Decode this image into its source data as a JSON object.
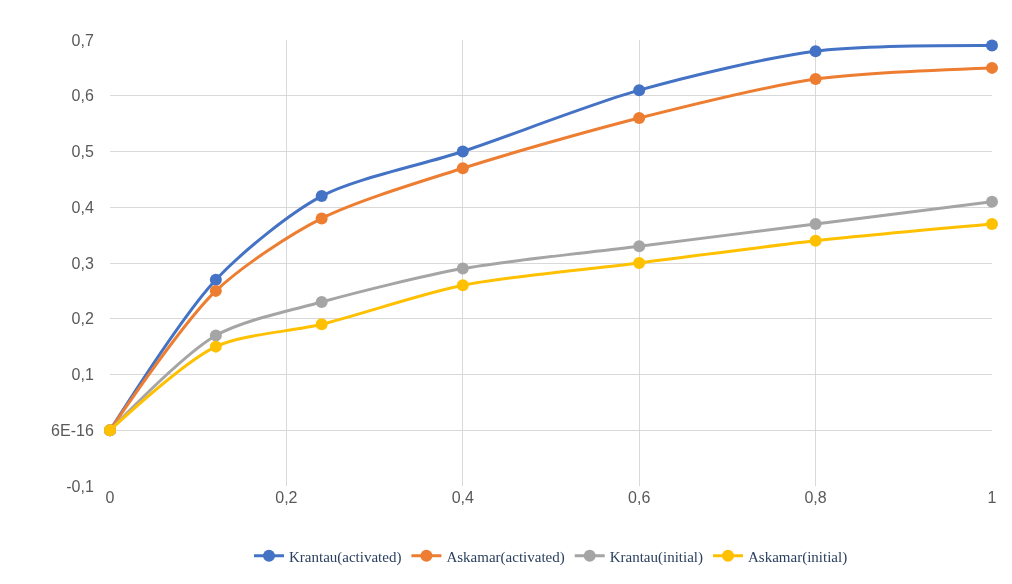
{
  "chart_data": {
    "type": "line",
    "x": [
      0,
      0.12,
      0.24,
      0.4,
      0.6,
      0.8,
      1
    ],
    "series": [
      {
        "name": "Krantau(activated)",
        "color": "#4472c4",
        "values": [
          0,
          0.27,
          0.42,
          0.5,
          0.61,
          0.68,
          0.69
        ]
      },
      {
        "name": "Askamar(activated)",
        "color": "#ed7d31",
        "values": [
          0,
          0.25,
          0.38,
          0.47,
          0.56,
          0.63,
          0.65
        ]
      },
      {
        "name": "Krantau(initial)",
        "color": "#a5a5a5",
        "values": [
          0,
          0.17,
          0.23,
          0.29,
          0.33,
          0.37,
          0.41
        ]
      },
      {
        "name": "Askamar(initial)",
        "color": "#ffc000",
        "values": [
          0,
          0.15,
          0.19,
          0.26,
          0.3,
          0.34,
          0.37
        ]
      }
    ],
    "xlim": [
      0,
      1
    ],
    "xticks": [
      0,
      {
        "value": 0.2,
        "label": "0,2"
      },
      {
        "value": 0.4,
        "label": "0,4"
      },
      {
        "value": 0.6,
        "label": "0,6"
      },
      {
        "value": 0.8,
        "label": "0,8"
      },
      1
    ],
    "ylim": [
      -0.1,
      0.7
    ],
    "yticks": [
      {
        "value": -0.1,
        "label": "-0,1"
      },
      {
        "value": 0,
        "label": "6E-16"
      },
      {
        "value": 0.1,
        "label": "0,1"
      },
      {
        "value": 0.2,
        "label": "0,2"
      },
      {
        "value": 0.3,
        "label": "0,3"
      },
      {
        "value": 0.4,
        "label": "0,4"
      },
      {
        "value": 0.5,
        "label": "0,5"
      },
      {
        "value": 0.6,
        "label": "0,6"
      },
      {
        "value": 0.7,
        "label": "0,7"
      }
    ],
    "grid": true,
    "legend": "bottom",
    "marker": "circle",
    "line_style": "solid"
  }
}
